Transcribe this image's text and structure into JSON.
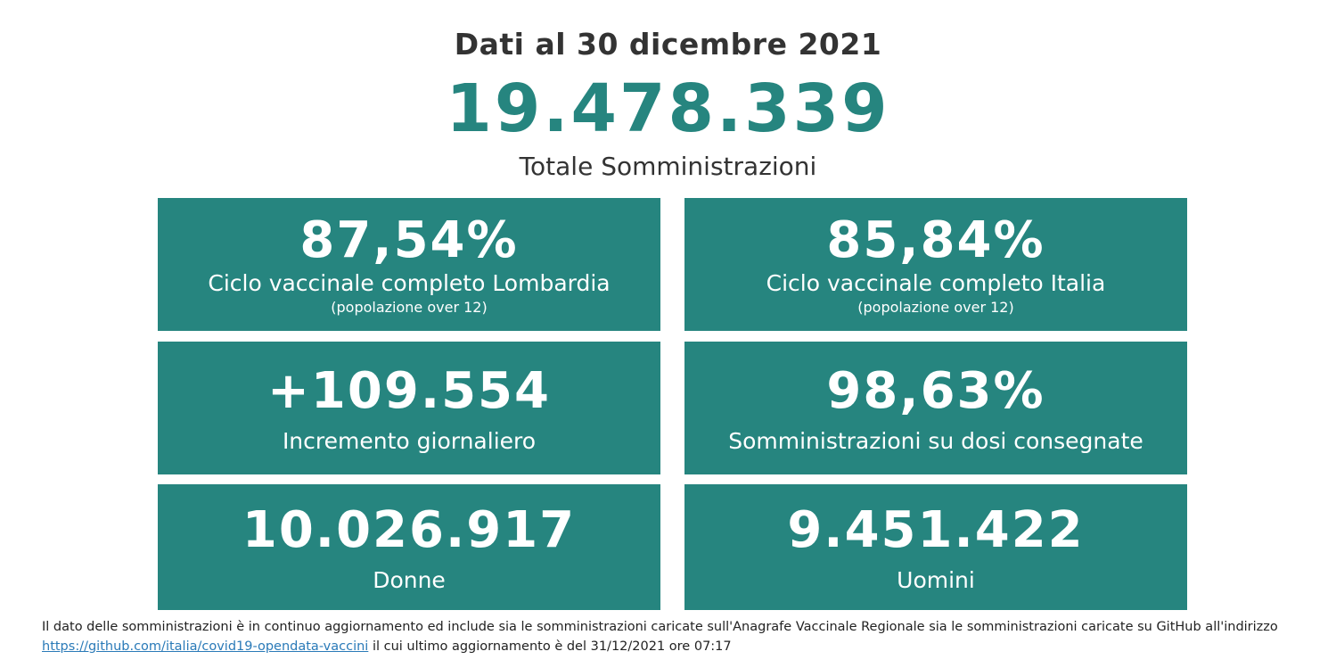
{
  "header": {
    "date": "Dati al 30 dicembre 2021",
    "total": "19.478.339",
    "total_label": "Totale Somministrazioni"
  },
  "cards": [
    {
      "value": "87,54%",
      "label": "Ciclo vaccinale completo Lombardia",
      "note": "(popolazione over 12)"
    },
    {
      "value": "85,84%",
      "label": "Ciclo vaccinale completo Italia",
      "note": "(popolazione over 12)"
    },
    {
      "value": "+109.554",
      "label": "Incremento giornaliero"
    },
    {
      "value": "98,63%",
      "label": "Somministrazioni su dosi consegnate"
    },
    {
      "value": "10.026.917",
      "label": "Donne"
    },
    {
      "value": "9.451.422",
      "label": "Uomini"
    }
  ],
  "footer": {
    "text_before": "Il dato delle somministrazioni è in continuo aggiornamento ed include sia le somministrazioni caricate sull'Anagrafe Vaccinale Regionale sia le somministrazioni caricate su GitHub all'indirizzo",
    "link": "https://github.com/italia/covid19-opendata-vaccini",
    "text_after": "il cui ultimo aggiornamento è del 31/12/2021 ore 07:17"
  },
  "colors": {
    "accent": "#26857f",
    "text": "#333333",
    "link": "#2a7ab8"
  }
}
